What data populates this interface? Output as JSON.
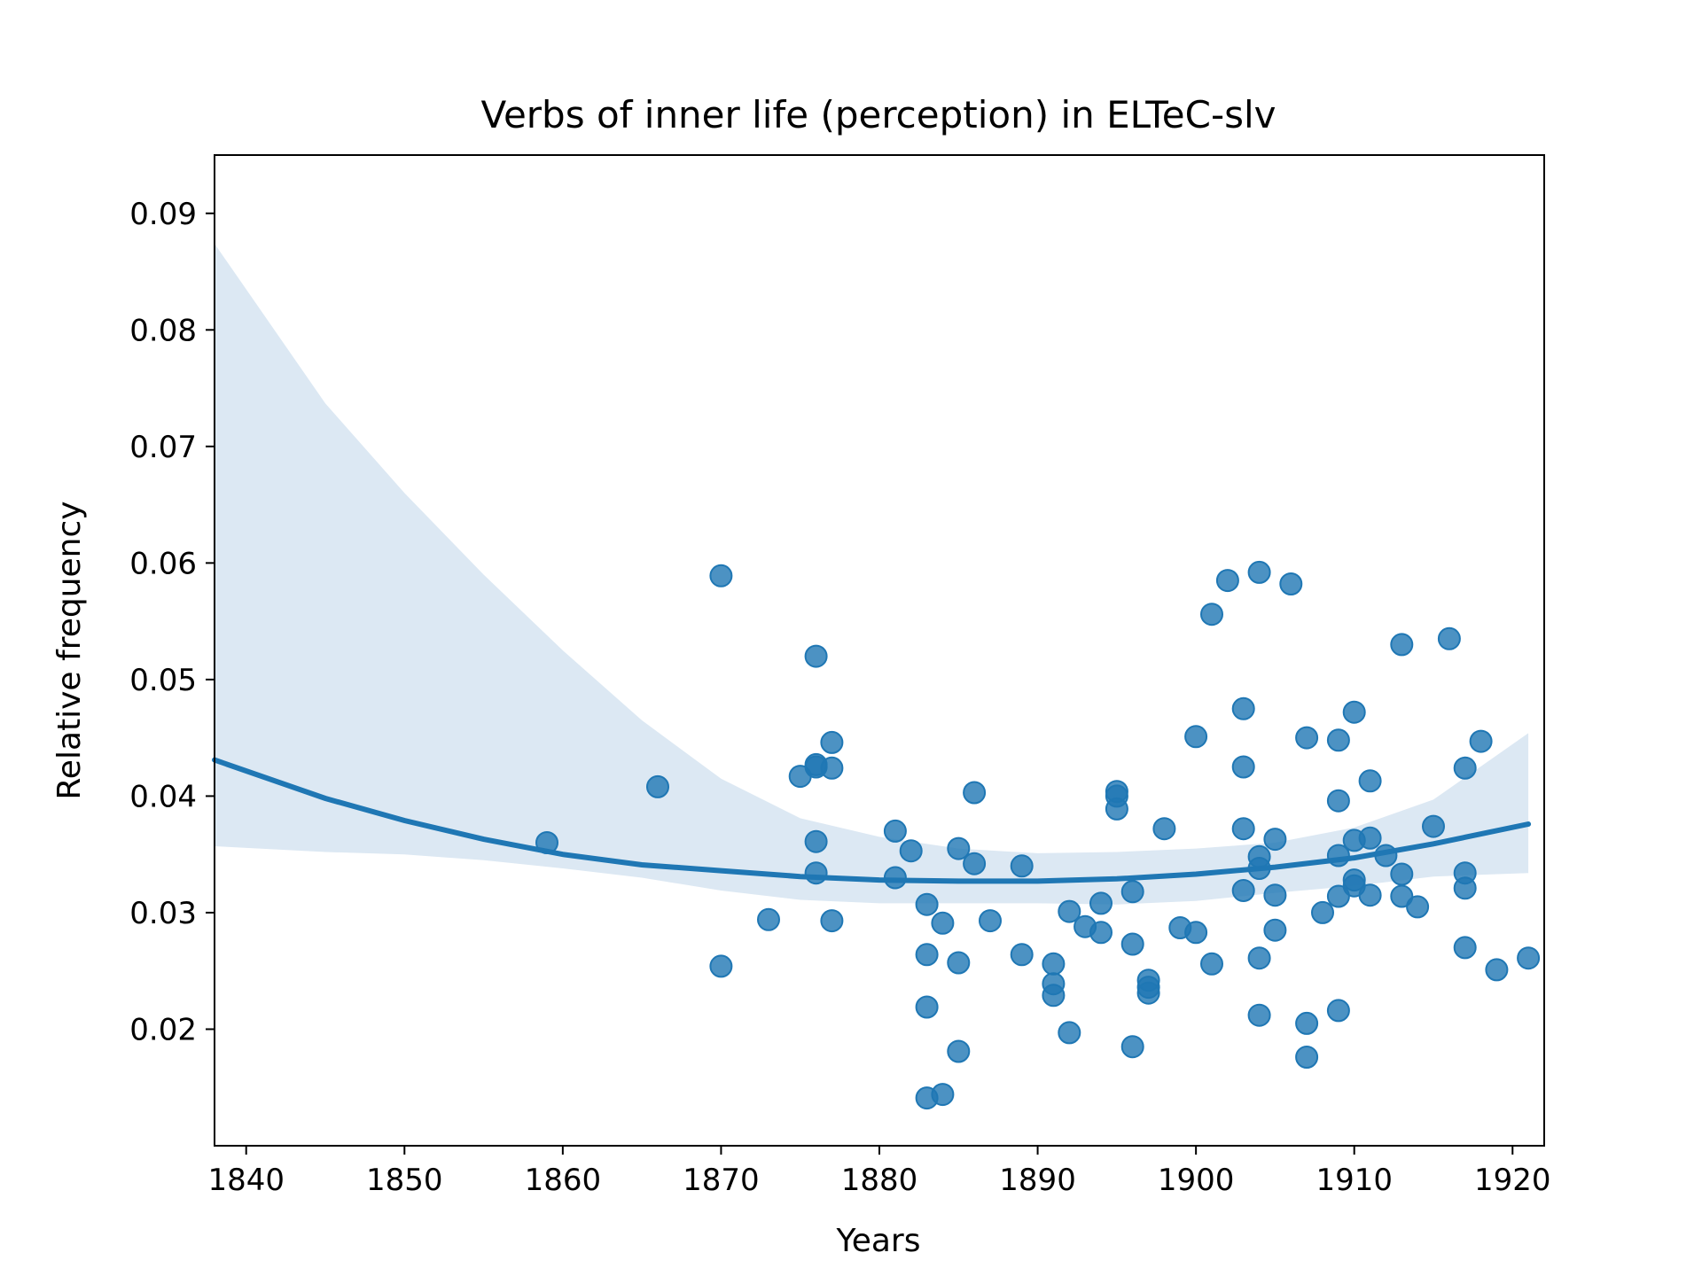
{
  "chart_data": {
    "type": "scatter",
    "title": "Verbs of inner life (perception) in ELTeC-slv",
    "xlabel": "Years",
    "ylabel": "Relative frequency",
    "xlim": [
      1838,
      1922
    ],
    "ylim": [
      0.01,
      0.095
    ],
    "xticks": [
      1840,
      1850,
      1860,
      1870,
      1880,
      1890,
      1900,
      1910,
      1920
    ],
    "yticks": [
      0.02,
      0.03,
      0.04,
      0.05,
      0.06,
      0.07,
      0.08,
      0.09
    ],
    "grid": false,
    "legend": "none",
    "colors": {
      "points": "#1f77b4",
      "line": "#1f77b4",
      "band": "#dce8f3"
    },
    "series": [
      {
        "kind": "points",
        "x": [
          1859,
          1866,
          1870,
          1870,
          1873,
          1875,
          1876,
          1876,
          1876,
          1876,
          1876,
          1877,
          1877,
          1877,
          1881,
          1881,
          1882,
          1883,
          1883,
          1883,
          1883,
          1884,
          1884,
          1885,
          1885,
          1885,
          1886,
          1886,
          1887,
          1889,
          1889,
          1891,
          1891,
          1891,
          1892,
          1892,
          1893,
          1894,
          1894,
          1895,
          1895,
          1895,
          1896,
          1896,
          1896,
          1897,
          1897,
          1897,
          1898,
          1899,
          1900,
          1900,
          1901,
          1901,
          1902,
          1903,
          1903,
          1903,
          1903,
          1904,
          1904,
          1904,
          1904,
          1904,
          1905,
          1905,
          1905,
          1906,
          1907,
          1907,
          1907,
          1908,
          1909,
          1909,
          1909,
          1909,
          1909,
          1910,
          1910,
          1910,
          1910,
          1911,
          1911,
          1911,
          1912,
          1913,
          1913,
          1913,
          1914,
          1915,
          1916,
          1917,
          1917,
          1917,
          1917,
          1918,
          1919,
          1921
        ],
        "y": [
          0.036,
          0.0408,
          0.0589,
          0.0254,
          0.0294,
          0.0417,
          0.0425,
          0.0427,
          0.0361,
          0.0334,
          0.052,
          0.0446,
          0.0424,
          0.0293,
          0.037,
          0.033,
          0.0353,
          0.0307,
          0.0264,
          0.0219,
          0.0141,
          0.0291,
          0.0144,
          0.0355,
          0.0257,
          0.0181,
          0.0403,
          0.0342,
          0.0293,
          0.034,
          0.0264,
          0.0256,
          0.0239,
          0.0229,
          0.0301,
          0.0197,
          0.0288,
          0.0308,
          0.0283,
          0.0404,
          0.04,
          0.0389,
          0.0318,
          0.0273,
          0.0185,
          0.0242,
          0.0236,
          0.0231,
          0.0372,
          0.0287,
          0.0451,
          0.0283,
          0.0556,
          0.0256,
          0.0585,
          0.0475,
          0.0425,
          0.0372,
          0.0319,
          0.0592,
          0.0348,
          0.0338,
          0.0261,
          0.0212,
          0.0363,
          0.0315,
          0.0285,
          0.0582,
          0.045,
          0.0205,
          0.0176,
          0.03,
          0.0448,
          0.0396,
          0.0349,
          0.0314,
          0.0216,
          0.0472,
          0.0362,
          0.0328,
          0.0323,
          0.0413,
          0.0364,
          0.0315,
          0.0349,
          0.053,
          0.0333,
          0.0314,
          0.0305,
          0.0374,
          0.0535,
          0.0424,
          0.0334,
          0.0321,
          0.027,
          0.0447,
          0.0251,
          0.0261
        ]
      },
      {
        "kind": "fit",
        "x": [
          1838,
          1845,
          1850,
          1855,
          1860,
          1865,
          1870,
          1875,
          1880,
          1885,
          1890,
          1895,
          1900,
          1905,
          1910,
          1915,
          1921
        ],
        "y": [
          0.0431,
          0.0398,
          0.0379,
          0.0363,
          0.035,
          0.0341,
          0.0336,
          0.0331,
          0.0328,
          0.0327,
          0.0327,
          0.0329,
          0.0333,
          0.0339,
          0.0347,
          0.0359,
          0.0376
        ]
      },
      {
        "kind": "band",
        "x": [
          1838,
          1845,
          1850,
          1855,
          1860,
          1865,
          1870,
          1875,
          1880,
          1885,
          1890,
          1895,
          1900,
          1905,
          1910,
          1915,
          1921
        ],
        "lower": [
          0.0357,
          0.0352,
          0.035,
          0.0345,
          0.0338,
          0.033,
          0.0319,
          0.0311,
          0.0308,
          0.0308,
          0.0308,
          0.0307,
          0.031,
          0.0317,
          0.0323,
          0.0331,
          0.0334
        ],
        "upper": [
          0.0874,
          0.0737,
          0.066,
          0.059,
          0.0525,
          0.0465,
          0.0415,
          0.0381,
          0.0365,
          0.0355,
          0.0351,
          0.0352,
          0.0355,
          0.036,
          0.0373,
          0.0397,
          0.0454
        ]
      }
    ]
  }
}
